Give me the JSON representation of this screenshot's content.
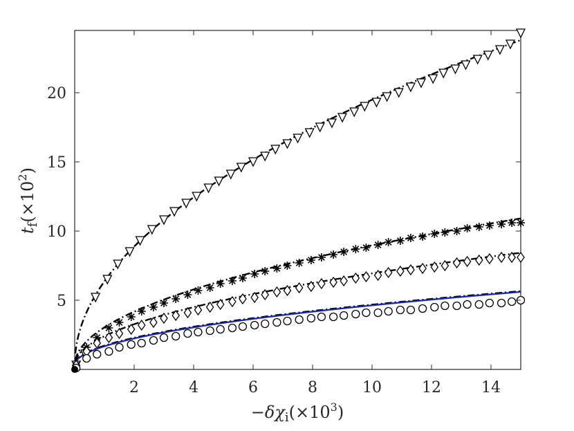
{
  "chart_data": {
    "type": "line",
    "xlabel": "−δχ_i(×10^3)",
    "ylabel": "t_f(×10^2)",
    "xlim": [
      0,
      15
    ],
    "ylim": [
      0,
      24.5
    ],
    "x_ticks": [
      2,
      4,
      6,
      8,
      10,
      12,
      14
    ],
    "y_ticks": [
      5,
      10,
      15,
      20
    ],
    "grid": false,
    "legend": "none",
    "series": [
      {
        "marker": "triangle-down",
        "line_style": "dash-dot",
        "line_color": "#000000",
        "points": [
          [
            0.05,
            0.3
          ],
          [
            0.35,
            1.1
          ],
          [
            0.7,
            5.2
          ],
          [
            1.1,
            6.5
          ],
          [
            1.45,
            7.6
          ],
          [
            1.85,
            8.5
          ],
          [
            2.2,
            9.3
          ],
          [
            2.6,
            10.1
          ],
          [
            3.0,
            10.8
          ],
          [
            3.35,
            11.4
          ],
          [
            3.75,
            12.0
          ],
          [
            4.1,
            12.5
          ],
          [
            4.5,
            13.1
          ],
          [
            4.85,
            13.6
          ],
          [
            5.25,
            14.1
          ],
          [
            5.6,
            14.6
          ],
          [
            6.0,
            15.0
          ],
          [
            6.4,
            15.4
          ],
          [
            6.75,
            15.9
          ],
          [
            7.15,
            16.3
          ],
          [
            7.5,
            16.7
          ],
          [
            7.9,
            17.1
          ],
          [
            8.25,
            17.5
          ],
          [
            8.65,
            17.8
          ],
          [
            9.0,
            18.2
          ],
          [
            9.4,
            18.6
          ],
          [
            9.75,
            19.0
          ],
          [
            10.15,
            19.3
          ],
          [
            10.5,
            19.7
          ],
          [
            10.9,
            20.0
          ],
          [
            11.3,
            20.4
          ],
          [
            11.65,
            20.7
          ],
          [
            12.05,
            21.0
          ],
          [
            12.4,
            21.4
          ],
          [
            12.8,
            21.7
          ],
          [
            13.15,
            22.0
          ],
          [
            13.55,
            22.4
          ],
          [
            13.9,
            22.7
          ],
          [
            14.3,
            23.1
          ],
          [
            14.65,
            23.5
          ],
          [
            15.0,
            24.3
          ]
        ],
        "fit": {
          "a": 6.13,
          "b": 0.5
        }
      },
      {
        "marker": "asterisk",
        "line_style": "dash-dot",
        "line_color": "#000000",
        "points": [
          [
            0.05,
            0.3
          ],
          [
            0.4,
            1.6
          ],
          [
            0.75,
            2.3
          ],
          [
            1.15,
            3.0
          ],
          [
            1.5,
            3.4
          ],
          [
            1.9,
            3.8
          ],
          [
            2.25,
            4.2
          ],
          [
            2.65,
            4.5
          ],
          [
            3.0,
            4.8
          ],
          [
            3.4,
            5.1
          ],
          [
            3.8,
            5.4
          ],
          [
            4.15,
            5.7
          ],
          [
            4.55,
            5.9
          ],
          [
            4.9,
            6.2
          ],
          [
            5.3,
            6.4
          ],
          [
            5.65,
            6.6
          ],
          [
            6.05,
            6.9
          ],
          [
            6.4,
            7.1
          ],
          [
            6.8,
            7.3
          ],
          [
            7.15,
            7.5
          ],
          [
            7.55,
            7.7
          ],
          [
            7.95,
            7.9
          ],
          [
            8.3,
            8.1
          ],
          [
            8.7,
            8.3
          ],
          [
            9.05,
            8.5
          ],
          [
            9.45,
            8.7
          ],
          [
            9.8,
            8.8
          ],
          [
            10.2,
            9.0
          ],
          [
            10.55,
            9.2
          ],
          [
            10.95,
            9.3
          ],
          [
            11.3,
            9.5
          ],
          [
            11.7,
            9.6
          ],
          [
            12.1,
            9.8
          ],
          [
            12.45,
            9.9
          ],
          [
            12.85,
            10.0
          ],
          [
            13.2,
            10.2
          ],
          [
            13.6,
            10.3
          ],
          [
            13.95,
            10.4
          ],
          [
            14.35,
            10.5
          ],
          [
            14.7,
            10.6
          ],
          [
            15.0,
            10.6
          ]
        ],
        "fit": {
          "a": 2.74,
          "b": 0.5
        }
      },
      {
        "marker": "diamond",
        "line_style": "dash-dot",
        "line_color": "#000000",
        "points": [
          [
            0.05,
            0.3
          ],
          [
            0.4,
            1.3
          ],
          [
            0.75,
            1.9
          ],
          [
            1.15,
            2.3
          ],
          [
            1.5,
            2.6
          ],
          [
            1.9,
            2.9
          ],
          [
            2.25,
            3.2
          ],
          [
            2.65,
            3.4
          ],
          [
            3.0,
            3.7
          ],
          [
            3.4,
            3.9
          ],
          [
            3.8,
            4.1
          ],
          [
            4.15,
            4.3
          ],
          [
            4.55,
            4.5
          ],
          [
            4.9,
            4.7
          ],
          [
            5.3,
            4.9
          ],
          [
            5.65,
            5.1
          ],
          [
            6.05,
            5.2
          ],
          [
            6.4,
            5.4
          ],
          [
            6.8,
            5.6
          ],
          [
            7.15,
            5.7
          ],
          [
            7.55,
            5.9
          ],
          [
            7.95,
            6.0
          ],
          [
            8.3,
            6.2
          ],
          [
            8.7,
            6.3
          ],
          [
            9.05,
            6.4
          ],
          [
            9.45,
            6.6
          ],
          [
            9.8,
            6.7
          ],
          [
            10.2,
            6.8
          ],
          [
            10.55,
            7.0
          ],
          [
            10.95,
            7.1
          ],
          [
            11.3,
            7.2
          ],
          [
            11.7,
            7.3
          ],
          [
            12.1,
            7.4
          ],
          [
            12.45,
            7.5
          ],
          [
            12.85,
            7.7
          ],
          [
            13.2,
            7.8
          ],
          [
            13.6,
            7.9
          ],
          [
            13.95,
            8.0
          ],
          [
            14.35,
            8.1
          ],
          [
            14.7,
            8.1
          ],
          [
            15.0,
            8.1
          ]
        ],
        "fit": {
          "a": 2.1,
          "b": 0.5
        }
      },
      {
        "marker": "circle",
        "line_style": "solid",
        "line_color": "#1f2ea0",
        "points": [
          [
            0.05,
            0.1
          ],
          [
            0.4,
            0.8
          ],
          [
            0.75,
            1.1
          ],
          [
            1.15,
            1.3
          ],
          [
            1.5,
            1.6
          ],
          [
            1.9,
            1.8
          ],
          [
            2.25,
            1.9
          ],
          [
            2.65,
            2.1
          ],
          [
            3.0,
            2.3
          ],
          [
            3.4,
            2.4
          ],
          [
            3.8,
            2.6
          ],
          [
            4.15,
            2.7
          ],
          [
            4.55,
            2.8
          ],
          [
            4.9,
            2.9
          ],
          [
            5.3,
            3.0
          ],
          [
            5.65,
            3.1
          ],
          [
            6.05,
            3.2
          ],
          [
            6.4,
            3.3
          ],
          [
            6.8,
            3.4
          ],
          [
            7.15,
            3.5
          ],
          [
            7.55,
            3.6
          ],
          [
            7.95,
            3.7
          ],
          [
            8.3,
            3.8
          ],
          [
            8.7,
            3.8
          ],
          [
            9.05,
            3.9
          ],
          [
            9.45,
            4.0
          ],
          [
            9.8,
            4.1
          ],
          [
            10.2,
            4.1
          ],
          [
            10.55,
            4.2
          ],
          [
            10.95,
            4.3
          ],
          [
            11.3,
            4.3
          ],
          [
            11.7,
            4.4
          ],
          [
            12.1,
            4.5
          ],
          [
            12.45,
            4.6
          ],
          [
            12.85,
            4.6
          ],
          [
            13.2,
            4.7
          ],
          [
            13.6,
            4.7
          ],
          [
            13.95,
            4.8
          ],
          [
            14.35,
            4.8
          ],
          [
            14.7,
            4.9
          ],
          [
            15.0,
            5.0
          ]
        ],
        "fit": {
          "a": 1.37,
          "b": 0.5
        }
      }
    ]
  }
}
